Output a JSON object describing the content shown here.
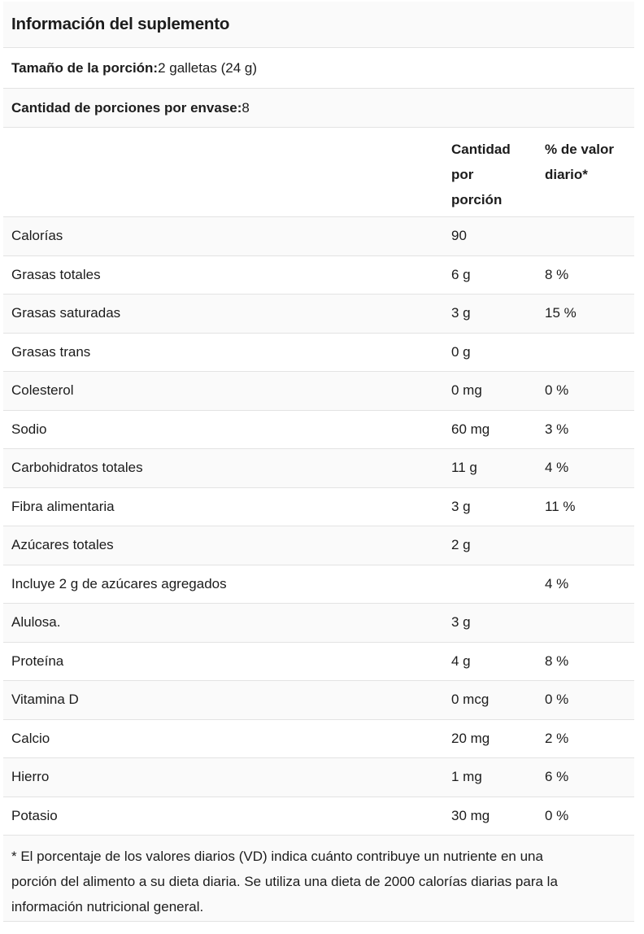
{
  "panel": {
    "title": "Información del suplemento",
    "serving_size": {
      "label": "Tamaño de la porción:",
      "value": "2 galletas (24 g)"
    },
    "servings_per_container": {
      "label": "Cantidad de porciones por envase:",
      "value": "8"
    },
    "columns": {
      "amount": "Cantidad por porción",
      "daily_value": "% de valor diario*"
    },
    "rows": [
      {
        "name": "Calorías",
        "amount": "90",
        "dv": ""
      },
      {
        "name": "Grasas totales",
        "amount": "6 g",
        "dv": "8 %"
      },
      {
        "name": "Grasas saturadas",
        "amount": "3 g",
        "dv": "15 %"
      },
      {
        "name": "Grasas trans",
        "amount": "0 g",
        "dv": ""
      },
      {
        "name": "Colesterol",
        "amount": "0 mg",
        "dv": "0 %"
      },
      {
        "name": "Sodio",
        "amount": "60 mg",
        "dv": "3 %"
      },
      {
        "name": "Carbohidratos totales",
        "amount": "11 g",
        "dv": "4 %"
      },
      {
        "name": "Fibra alimentaria",
        "amount": "3 g",
        "dv": "11 %"
      },
      {
        "name": "Azúcares totales",
        "amount": "2 g",
        "dv": ""
      },
      {
        "name": "Incluye 2 g de azúcares agregados",
        "amount": "",
        "dv": "4 %"
      },
      {
        "name": "Alulosa.",
        "amount": "3 g",
        "dv": ""
      },
      {
        "name": "Proteína",
        "amount": "4 g",
        "dv": "8 %"
      },
      {
        "name": "Vitamina D",
        "amount": "0 mcg",
        "dv": "0 %"
      },
      {
        "name": "Calcio",
        "amount": "20 mg",
        "dv": "2 %"
      },
      {
        "name": "Hierro",
        "amount": "1 mg",
        "dv": "6 %"
      },
      {
        "name": "Potasio",
        "amount": "30 mg",
        "dv": "0 %"
      }
    ],
    "footnote": "* El porcentaje de los valores diarios (VD) indica cuánto contribuye un nutriente en una porción del alimento a su dieta diaria. Se utiliza una dieta de 2000 calorías diarias para la información nutricional general.",
    "colors": {
      "shaded_row": "#fafafa",
      "plain_row": "#ffffff",
      "divider": "#e3e3e3",
      "text": "#1c1c1c"
    }
  }
}
